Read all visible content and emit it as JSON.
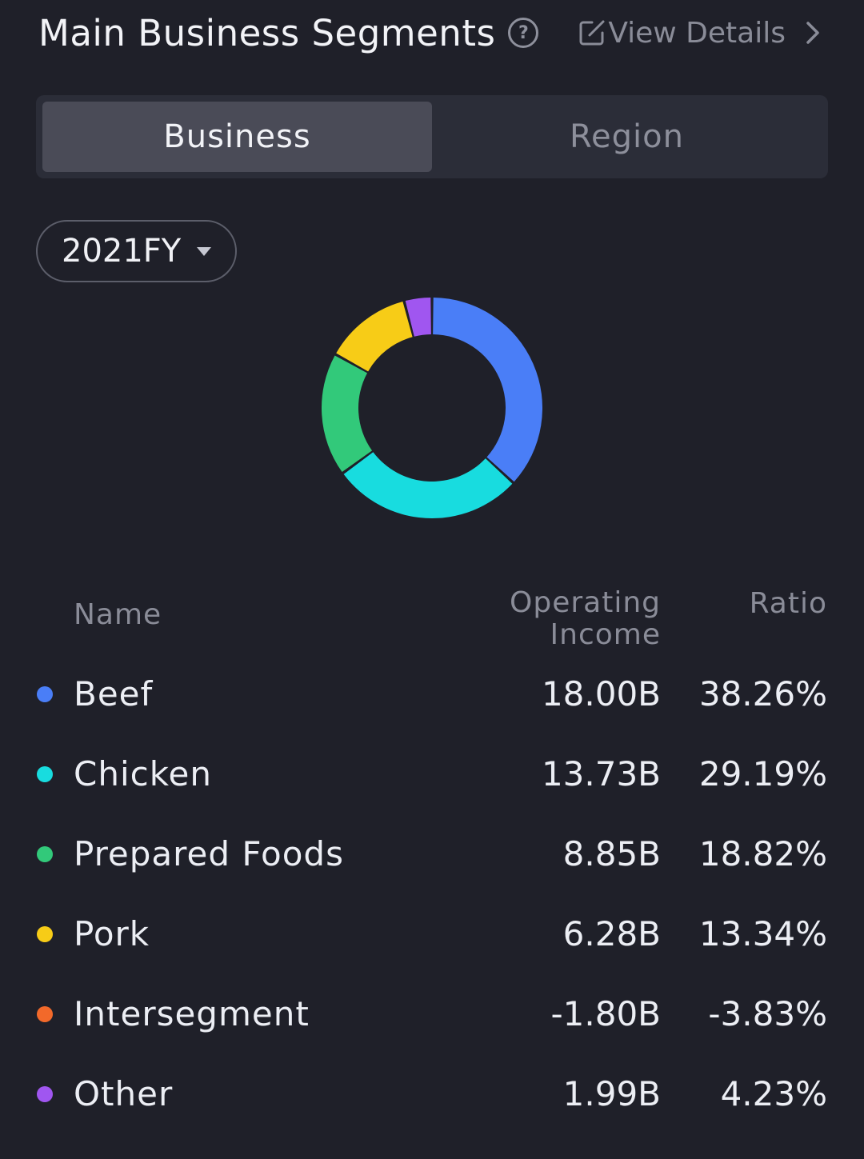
{
  "header": {
    "title": "Main Business Segments",
    "view_details_label": "View Details"
  },
  "tabs": [
    {
      "label": "Business",
      "active": true
    },
    {
      "label": "Region",
      "active": false
    }
  ],
  "period_select": {
    "value": "2021FY"
  },
  "table": {
    "headers": {
      "name": "Name",
      "income": "Operating Income",
      "ratio": "Ratio"
    }
  },
  "chart_data": {
    "type": "pie",
    "categories": [
      "Beef",
      "Chicken",
      "Prepared Foods",
      "Pork",
      "Intersegment",
      "Other"
    ],
    "values": [
      18.0,
      13.73,
      8.85,
      6.28,
      -1.8,
      1.99
    ],
    "series": [
      {
        "name": "Operating Income",
        "values": [
          "18.00B",
          "13.73B",
          "8.85B",
          "6.28B",
          "-1.80B",
          "1.99B"
        ]
      },
      {
        "name": "Ratio",
        "values": [
          "38.26%",
          "29.19%",
          "18.82%",
          "13.34%",
          "-3.83%",
          "4.23%"
        ]
      }
    ],
    "ratios": [
      38.26,
      29.19,
      18.82,
      13.34,
      -3.83,
      4.23
    ],
    "colors": [
      "#4a7ef7",
      "#18dcdf",
      "#32c97a",
      "#f7cc17",
      "#f2692a",
      "#a056f0"
    ]
  }
}
